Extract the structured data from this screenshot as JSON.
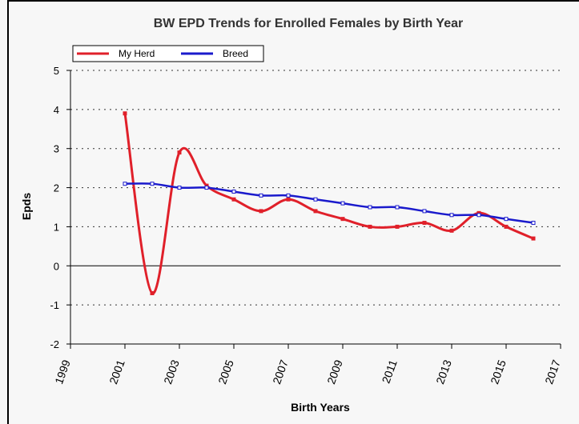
{
  "chart_data": {
    "type": "line",
    "title": "BW EPD Trends for Enrolled Females by Birth Year",
    "x_label": "Birth Years",
    "y_label": "Epds",
    "x": [
      2001,
      2002,
      2003,
      2004,
      2005,
      2006,
      2007,
      2008,
      2009,
      2010,
      2011,
      2012,
      2013,
      2014,
      2015,
      2016
    ],
    "series": [
      {
        "name": "My Herd",
        "color": "#e0202a",
        "values": [
          3.9,
          -0.7,
          2.9,
          2.05,
          1.7,
          1.4,
          1.7,
          1.4,
          1.2,
          1.0,
          1.0,
          1.1,
          0.9,
          1.35,
          1.0,
          0.7
        ]
      },
      {
        "name": "Breed",
        "color": "#1a1acc",
        "values": [
          2.1,
          2.1,
          2.0,
          2.0,
          1.9,
          1.8,
          1.8,
          1.7,
          1.6,
          1.5,
          1.5,
          1.4,
          1.3,
          1.3,
          1.2,
          1.1
        ]
      }
    ],
    "xlim": [
      1999,
      2017
    ],
    "xticks": [
      1999,
      2001,
      2003,
      2005,
      2007,
      2009,
      2011,
      2013,
      2015,
      2017
    ],
    "ylim": [
      -2,
      5
    ],
    "yticks": [
      -2,
      -1,
      0,
      1,
      2,
      3,
      4,
      5
    ],
    "grid": true,
    "legend": "top-left"
  }
}
